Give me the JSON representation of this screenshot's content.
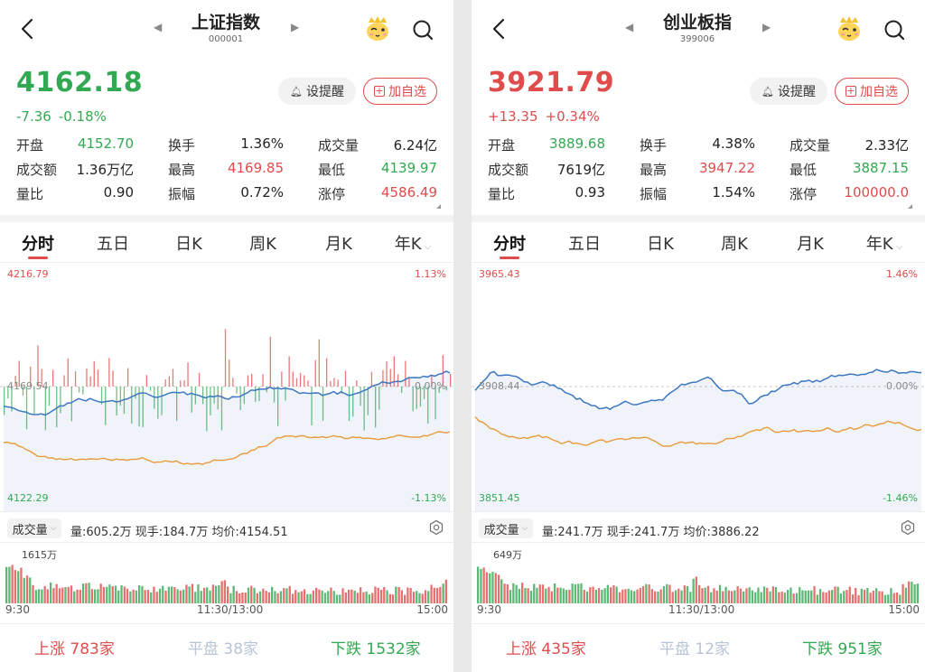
{
  "colors": {
    "up": "#e04c4c",
    "down": "#33a852",
    "flat": "#b8c4d6",
    "price_line": "#3d78c0",
    "avg_line": "#e89a3c"
  },
  "panels": [
    {
      "nav": {
        "title": "上证指数",
        "code": "000001",
        "back_icon": "chevron-left-icon",
        "mascot_icon": "mascot-icon",
        "search_icon": "search-icon"
      },
      "quote": {
        "price": "4162.18",
        "change": "-7.36",
        "change_pct": "-0.18%",
        "direction": "down"
      },
      "buttons": {
        "alert": "设提醒",
        "add": "加自选"
      },
      "stats": [
        [
          {
            "label": "开盘",
            "value": "4152.70",
            "color": "down"
          },
          {
            "label": "换手",
            "value": "1.36%",
            "color": "neutral"
          },
          {
            "label": "成交量",
            "value": "6.24亿",
            "color": "neutral"
          }
        ],
        [
          {
            "label": "成交额",
            "value": "1.36万亿",
            "color": "neutral"
          },
          {
            "label": "最高",
            "value": "4169.85",
            "color": "up"
          },
          {
            "label": "最低",
            "value": "4139.97",
            "color": "down"
          }
        ],
        [
          {
            "label": "量比",
            "value": "0.90",
            "color": "neutral"
          },
          {
            "label": "振幅",
            "value": "0.72%",
            "color": "neutral"
          },
          {
            "label": "涨停",
            "value": "4586.49",
            "color": "up"
          }
        ]
      ],
      "tabs": [
        "分时",
        "五日",
        "日K",
        "周K",
        "月K",
        "年K"
      ],
      "chart": {
        "y_top": "4216.79",
        "y_mid": "4169.54",
        "y_bottom": "4122.29",
        "pct_top": "1.13%",
        "pct_mid": "0.00%",
        "pct_bottom": "-1.13%",
        "volume_label": "成交量",
        "volume_info": "量:605.2万  现手:184.7万  均价:4154.51",
        "volume_max": "1615万",
        "time_start": "9:30",
        "time_mid": "11:30/13:00",
        "time_end": "15:00"
      },
      "breadth": {
        "up_label": "上涨",
        "up_count": "783家",
        "flat_label": "平盘",
        "flat_count": "38家",
        "down_label": "下跌",
        "down_count": "1532家"
      }
    },
    {
      "nav": {
        "title": "创业板指",
        "code": "399006",
        "back_icon": "chevron-left-icon",
        "mascot_icon": "mascot-icon",
        "search_icon": "search-icon"
      },
      "quote": {
        "price": "3921.79",
        "change": "+13.35",
        "change_pct": "+0.34%",
        "direction": "up"
      },
      "buttons": {
        "alert": "设提醒",
        "add": "加自选"
      },
      "stats": [
        [
          {
            "label": "开盘",
            "value": "3889.68",
            "color": "down"
          },
          {
            "label": "换手",
            "value": "4.38%",
            "color": "neutral"
          },
          {
            "label": "成交量",
            "value": "2.33亿",
            "color": "neutral"
          }
        ],
        [
          {
            "label": "成交额",
            "value": "7619亿",
            "color": "neutral"
          },
          {
            "label": "最高",
            "value": "3947.22",
            "color": "up"
          },
          {
            "label": "最低",
            "value": "3887.15",
            "color": "down"
          }
        ],
        [
          {
            "label": "量比",
            "value": "0.93",
            "color": "neutral"
          },
          {
            "label": "振幅",
            "value": "1.54%",
            "color": "neutral"
          },
          {
            "label": "涨停",
            "value": "100000.0",
            "color": "up"
          }
        ]
      ],
      "tabs": [
        "分时",
        "五日",
        "日K",
        "周K",
        "月K",
        "年K"
      ],
      "chart": {
        "y_top": "3965.43",
        "y_mid": "3908.44",
        "y_bottom": "3851.45",
        "pct_top": "1.46%",
        "pct_mid": "0.00%",
        "pct_bottom": "-1.46%",
        "volume_label": "成交量",
        "volume_info": "量:241.7万  现手:241.7万  均价:3886.22",
        "volume_max": "649万",
        "time_start": "9:30",
        "time_mid": "11:30/13:00",
        "time_end": "15:00"
      },
      "breadth": {
        "up_label": "上涨",
        "up_count": "435家",
        "flat_label": "平盘",
        "flat_count": "12家",
        "down_label": "下跌",
        "down_count": "951家"
      }
    }
  ]
}
